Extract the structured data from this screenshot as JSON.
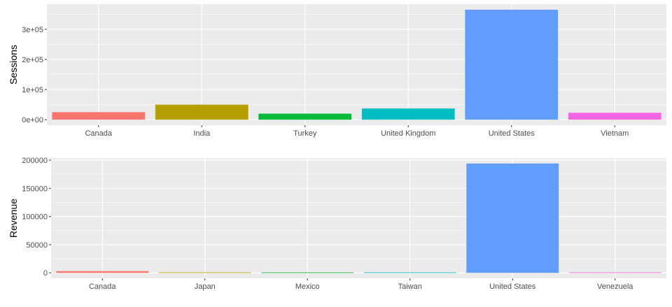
{
  "chart_data": [
    {
      "type": "bar",
      "ylabel": "Sessions",
      "xlabel": "",
      "categories": [
        "Canada",
        "India",
        "Turkey",
        "United Kingdom",
        "United States",
        "Vietnam"
      ],
      "values": [
        25000,
        50000,
        20000,
        37000,
        365000,
        23000
      ],
      "colors": [
        "#F8766D",
        "#B79F00",
        "#00BA38",
        "#00BFC4",
        "#619CFF",
        "#F564E3"
      ],
      "ylim": [
        -18250,
        383250
      ],
      "yticks": [
        0,
        100000,
        200000,
        300000
      ],
      "ytick_labels": [
        "0e+00",
        "1e+05",
        "2e+05",
        "3e+05"
      ],
      "grid": true,
      "legend": "none"
    },
    {
      "type": "bar",
      "ylabel": "Revenue",
      "xlabel": "",
      "categories": [
        "Canada",
        "Japan",
        "Mexico",
        "Taiwan",
        "United States",
        "Venezuela"
      ],
      "values": [
        3000,
        800,
        800,
        800,
        194000,
        800
      ],
      "colors": [
        "#F8766D",
        "#B79F00",
        "#00BA38",
        "#00BFC4",
        "#619CFF",
        "#F564E3"
      ],
      "ylim": [
        -9700,
        203700
      ],
      "yticks": [
        0,
        50000,
        100000,
        150000,
        200000
      ],
      "ytick_labels": [
        "0",
        "50000",
        "100000",
        "150000",
        "200000"
      ],
      "grid": true,
      "legend": "none"
    }
  ]
}
